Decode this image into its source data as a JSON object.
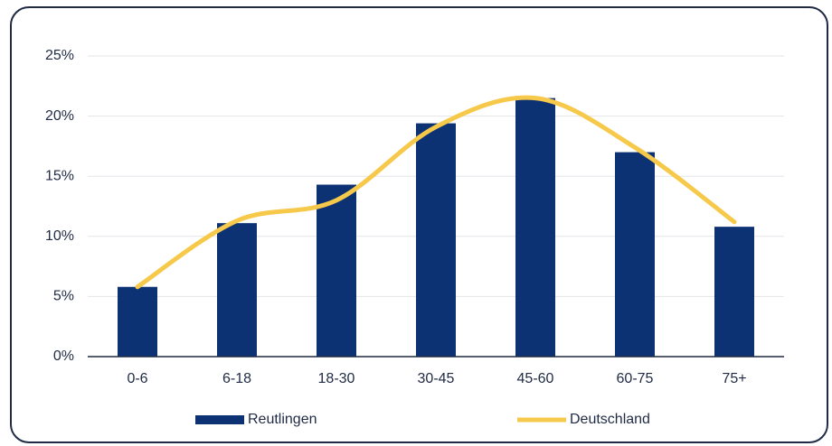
{
  "chart_data": {
    "type": "bar",
    "categories": [
      "0-6",
      "6-18",
      "18-30",
      "30-45",
      "45-60",
      "60-75",
      "75+"
    ],
    "series": [
      {
        "name": "Reutlingen",
        "type": "bar",
        "color": "#0c3273",
        "values": [
          5.8,
          11.1,
          14.3,
          19.4,
          21.5,
          17.0,
          10.8
        ]
      },
      {
        "name": "Deutschland",
        "type": "line",
        "color": "#f7c94b",
        "values": [
          5.8,
          11.3,
          13.0,
          19.1,
          21.5,
          17.4,
          11.2
        ]
      }
    ],
    "ylim": [
      0,
      25
    ],
    "yticks": [
      {
        "value": 0,
        "label": "0%"
      },
      {
        "value": 5,
        "label": "5%"
      },
      {
        "value": 10,
        "label": "10%"
      },
      {
        "value": 15,
        "label": "15%"
      },
      {
        "value": 20,
        "label": "20%"
      },
      {
        "value": 25,
        "label": "25%"
      }
    ],
    "grid": true,
    "legend": "bottom"
  }
}
